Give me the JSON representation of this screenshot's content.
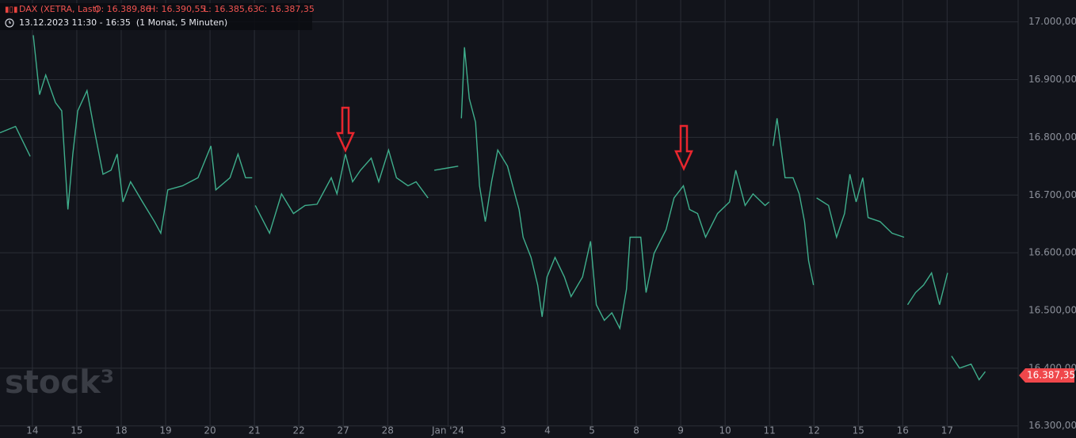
{
  "chart_data": {
    "type": "line",
    "instrument": "DAX (XETRA, Last)",
    "ohlc": [
      "O: 16.389,86",
      "H: 16.390,55",
      "L: 16.385,63",
      "C: 16.387,35"
    ],
    "period": "13.12.2023 11:30 - 16:35  (1 Monat, 5 Minuten)",
    "watermark": "stock³",
    "last_price": {
      "value": 16387.35,
      "label": "16.387,35"
    },
    "grid": true,
    "xlim": [
      -0.73,
      22.2
    ],
    "ylim": [
      16279,
      17038
    ],
    "xticks": [
      {
        "value": 0,
        "label": "14"
      },
      {
        "value": 1,
        "label": "15"
      },
      {
        "value": 2,
        "label": "18"
      },
      {
        "value": 3,
        "label": "19"
      },
      {
        "value": 4,
        "label": "20"
      },
      {
        "value": 5,
        "label": "21"
      },
      {
        "value": 6,
        "label": "22"
      },
      {
        "value": 7,
        "label": "27"
      },
      {
        "value": 8,
        "label": "28"
      },
      {
        "value": 9.36,
        "label": "Jan '24"
      },
      {
        "value": 10.6,
        "label": "3"
      },
      {
        "value": 11.6,
        "label": "4"
      },
      {
        "value": 12.6,
        "label": "5"
      },
      {
        "value": 13.6,
        "label": "8"
      },
      {
        "value": 14.6,
        "label": "9"
      },
      {
        "value": 15.6,
        "label": "10"
      },
      {
        "value": 16.6,
        "label": "11"
      },
      {
        "value": 17.6,
        "label": "12"
      },
      {
        "value": 18.6,
        "label": "15"
      },
      {
        "value": 19.6,
        "label": "16"
      },
      {
        "value": 20.6,
        "label": "17"
      }
    ],
    "yticks": [
      {
        "value": 16300,
        "label": "16.300,00"
      },
      {
        "value": 16400,
        "label": "16.400,00"
      },
      {
        "value": 16500,
        "label": "16.500,00"
      },
      {
        "value": 16600,
        "label": "16.600,00"
      },
      {
        "value": 16700,
        "label": "16.700,00"
      },
      {
        "value": 16800,
        "label": "16.800,00"
      },
      {
        "value": 16900,
        "label": "16.900,00"
      },
      {
        "value": 17000,
        "label": "17.000,00"
      }
    ],
    "series": [
      {
        "name": "DAX",
        "color": "#3fae8c",
        "x": [
          -0.73,
          -0.38,
          -0.05,
          null,
          0.02,
          0.16,
          0.3,
          0.52,
          0.66,
          0.8,
          0.91,
          1.02,
          1.23,
          1.38,
          1.59,
          1.77,
          1.91,
          2.04,
          2.21,
          2.48,
          2.75,
          2.89,
          3.05,
          3.38,
          3.73,
          4.02,
          4.13,
          4.45,
          4.63,
          4.8,
          4.95,
          null,
          5.02,
          5.34,
          5.61,
          5.88,
          6.14,
          6.41,
          6.73,
          6.86,
          7.05,
          7.21,
          7.39,
          7.63,
          7.8,
          8.02,
          8.2,
          8.46,
          8.64,
          8.91,
          null,
          9.05,
          9.36,
          9.59,
          null,
          9.66,
          9.73,
          9.84,
          9.98,
          10.07,
          10.2,
          10.34,
          10.48,
          10.7,
          10.84,
          10.96,
          11.05,
          11.23,
          11.38,
          11.48,
          11.59,
          11.77,
          11.98,
          12.13,
          12.39,
          12.57,
          12.7,
          12.88,
          13.05,
          13.23,
          13.38,
          13.46,
          13.7,
          13.82,
          14.0,
          14.27,
          14.45,
          14.66,
          14.8,
          14.98,
          15.16,
          15.43,
          15.7,
          15.84,
          16.05,
          16.23,
          16.5,
          16.59,
          null,
          16.68,
          16.77,
          16.95,
          17.13,
          17.27,
          17.39,
          17.48,
          17.59,
          null,
          17.66,
          17.93,
          18.11,
          18.29,
          18.41,
          18.55,
          18.7,
          18.82,
          19.09,
          19.36,
          19.63,
          null,
          19.71,
          19.89,
          20.07,
          20.25,
          20.43,
          20.61,
          null,
          20.7,
          20.88,
          21.14,
          21.32,
          21.46
        ],
        "values": [
          16808,
          16819,
          16767,
          null,
          16977,
          16874,
          16908,
          16860,
          16846,
          16675,
          16771,
          16846,
          16881,
          16819,
          16736,
          16743,
          16771,
          16688,
          16723,
          16688,
          16654,
          16634,
          16709,
          16716,
          16730,
          16785,
          16709,
          16730,
          16771,
          16730,
          16730,
          null,
          16682,
          16634,
          16702,
          16668,
          16682,
          16684,
          16730,
          16702,
          16771,
          16723,
          16743,
          16764,
          16723,
          16778,
          16730,
          16716,
          16723,
          16695,
          null,
          16743,
          16747,
          16750,
          null,
          16833,
          16956,
          16867,
          16826,
          16716,
          16654,
          16723,
          16778,
          16750,
          16709,
          16675,
          16627,
          16592,
          16544,
          16489,
          16558,
          16592,
          16558,
          16524,
          16558,
          16620,
          16510,
          16483,
          16496,
          16469,
          16537,
          16627,
          16627,
          16531,
          16599,
          16640,
          16695,
          16716,
          16675,
          16668,
          16627,
          16668,
          16688,
          16743,
          16682,
          16702,
          16682,
          16688,
          null,
          16785,
          16833,
          16730,
          16730,
          16702,
          16654,
          16586,
          16544,
          null,
          16695,
          16682,
          16627,
          16668,
          16736,
          16688,
          16730,
          16661,
          16654,
          16634,
          16627,
          null,
          16510,
          16531,
          16544,
          16565,
          16510,
          16565,
          null,
          16421,
          16400,
          16407,
          16380,
          16394
        ]
      }
    ]
  }
}
